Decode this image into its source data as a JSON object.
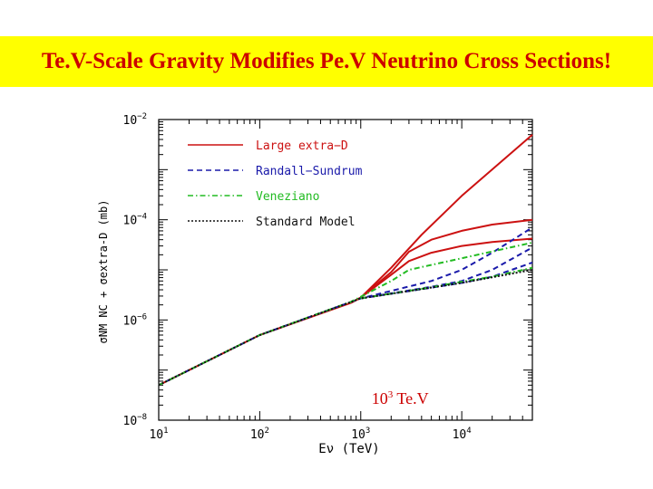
{
  "slide": {
    "title": "Te.V-Scale Gravity Modifies Pe.V Neutrino Cross Sections!"
  },
  "chart_data": {
    "type": "line",
    "xlabel": "Eν (TeV)",
    "ylabel": "σNM NC + σextra-D (mb)",
    "xscale": "log",
    "yscale": "log",
    "xlim": [
      10,
      50000
    ],
    "ylim": [
      1e-08,
      0.01
    ],
    "x_ticks": [
      {
        "value": 10,
        "label_base": "10",
        "label_exp": "1"
      },
      {
        "value": 100,
        "label_base": "10",
        "label_exp": "2"
      },
      {
        "value": 1000,
        "label_base": "10",
        "label_exp": "3"
      },
      {
        "value": 10000,
        "label_base": "10",
        "label_exp": "4"
      }
    ],
    "y_ticks": [
      {
        "value": 1e-08,
        "label_base": "10",
        "label_exp": "−8"
      },
      {
        "value": 1e-06,
        "label_base": "10",
        "label_exp": "−6"
      },
      {
        "value": 0.0001,
        "label_base": "10",
        "label_exp": "−4"
      },
      {
        "value": 0.01,
        "label_base": "10",
        "label_exp": "−2"
      }
    ],
    "legend_position": "top-left",
    "annotation": {
      "base": "10",
      "exp": "3",
      "unit": " Te.V",
      "x": 1000,
      "color": "#cc0000"
    },
    "series": [
      {
        "name": "Large extra−D",
        "color": "#cc1111",
        "dash": "solid",
        "x": [
          10,
          100,
          800,
          1000,
          2000,
          4000,
          10000,
          50000
        ],
        "y": [
          5e-08,
          5e-07,
          2.2e-06,
          2.8e-06,
          1.1e-05,
          5e-05,
          0.0003,
          0.005
        ]
      },
      {
        "name": "",
        "color": "#cc1111",
        "dash": "solid",
        "x": [
          800,
          1000,
          2000,
          3000,
          5000,
          10000,
          20000,
          50000
        ],
        "y": [
          2.2e-06,
          2.8e-06,
          9e-06,
          2.3e-05,
          4e-05,
          6e-05,
          8e-05,
          0.0001
        ]
      },
      {
        "name": "",
        "color": "#cc1111",
        "dash": "solid",
        "x": [
          800,
          1000,
          2000,
          3000,
          5000,
          10000,
          20000,
          50000
        ],
        "y": [
          2.2e-06,
          2.8e-06,
          8e-06,
          1.5e-05,
          2.2e-05,
          3e-05,
          3.6e-05,
          4.2e-05
        ]
      },
      {
        "name": "Randall−Sundrum",
        "color": "#1a1aaa",
        "dash": "dashed",
        "x": [
          10,
          100,
          1000,
          5000,
          10000,
          20000,
          50000
        ],
        "y": [
          5e-08,
          5e-07,
          2.7e-06,
          6e-06,
          1e-05,
          2.2e-05,
          7e-05
        ]
      },
      {
        "name": "",
        "color": "#1a1aaa",
        "dash": "dashed",
        "x": [
          1000,
          5000,
          10000,
          20000,
          50000
        ],
        "y": [
          2.7e-06,
          4.6e-06,
          6e-06,
          1e-05,
          2.8e-05
        ]
      },
      {
        "name": "",
        "color": "#1a1aaa",
        "dash": "dashed",
        "x": [
          1000,
          5000,
          10000,
          20000,
          50000
        ],
        "y": [
          2.7e-06,
          4.4e-06,
          5.5e-06,
          7.3e-06,
          1.4e-05
        ]
      },
      {
        "name": "Veneziano",
        "color": "#22bb22",
        "dash": "dashdot",
        "x": [
          10,
          100,
          800,
          2000,
          3000,
          10000,
          50000
        ],
        "y": [
          5e-08,
          5e-07,
          2.3e-06,
          6e-06,
          1e-05,
          1.7e-05,
          3.5e-05
        ]
      },
      {
        "name": "",
        "color": "#22bb22",
        "dash": "dashdot",
        "x": [
          1000,
          5000,
          10000,
          20000,
          50000
        ],
        "y": [
          2.7e-06,
          4.5e-06,
          5.8e-06,
          7.3e-06,
          1.1e-05
        ]
      },
      {
        "name": "Standard Model",
        "color": "#111111",
        "dash": "dotted",
        "x": [
          10,
          100,
          1000,
          10000,
          50000
        ],
        "y": [
          5e-08,
          5e-07,
          2.7e-06,
          5.5e-06,
          1e-05
        ]
      }
    ]
  }
}
